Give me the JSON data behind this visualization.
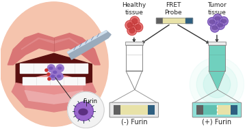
{
  "bg_color": "#ffffff",
  "left_panel": {
    "furin_label": "Furin"
  },
  "right_panel": {
    "healthy_label": "Healthy\ntissue",
    "fret_label": "FRET\nProbe",
    "tumor_label": "Tumor\ntissue",
    "minus_furin_label": "(-) Furin",
    "plus_furin_label": "(+) Furin",
    "arrow_color": "#333333",
    "label_color": "#222222",
    "font_size": 6.5
  }
}
